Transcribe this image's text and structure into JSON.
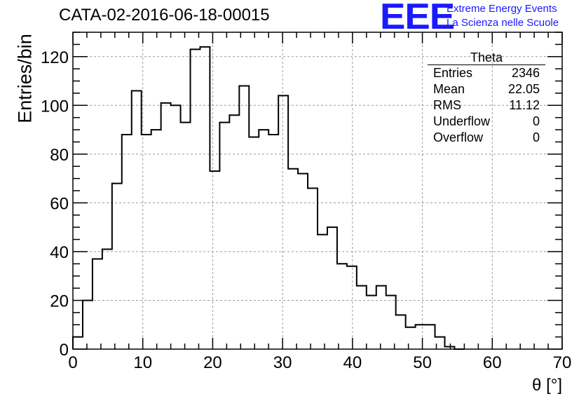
{
  "title": "CATA-02-2016-06-18-00015",
  "logo": {
    "mark": "EEE",
    "line1": "Extreme Energy Events",
    "line2": "La Scienza nelle Scuole",
    "color": "#1a1aff"
  },
  "stats": {
    "title": "Theta",
    "rows": [
      {
        "label": "Entries",
        "value": "2346"
      },
      {
        "label": "Mean",
        "value": "22.05"
      },
      {
        "label": "RMS",
        "value": "11.12"
      },
      {
        "label": "Underflow",
        "value": "0"
      },
      {
        "label": "Overflow",
        "value": "0"
      }
    ]
  },
  "chart_data": {
    "type": "histogram",
    "xlabel": "θ [°]",
    "ylabel": "Entries/bin",
    "xlim": [
      0,
      70
    ],
    "ylim": [
      0,
      130
    ],
    "bin_width": 1.4,
    "x_ticks": [
      0,
      10,
      20,
      30,
      40,
      50,
      60,
      70
    ],
    "y_ticks": [
      0,
      20,
      40,
      60,
      80,
      100,
      120
    ],
    "grid": true,
    "line_color": "#000000",
    "values": [
      5,
      20,
      37,
      41,
      68,
      88,
      106,
      88,
      90,
      101,
      100,
      93,
      123,
      124,
      73,
      93,
      96,
      108,
      87,
      90,
      88,
      104,
      74,
      72,
      66,
      47,
      50,
      35,
      34,
      26,
      22,
      26,
      22,
      14,
      9,
      10,
      10,
      5,
      1,
      0,
      0,
      0,
      0,
      0,
      0,
      0,
      0,
      0,
      0,
      0
    ]
  }
}
